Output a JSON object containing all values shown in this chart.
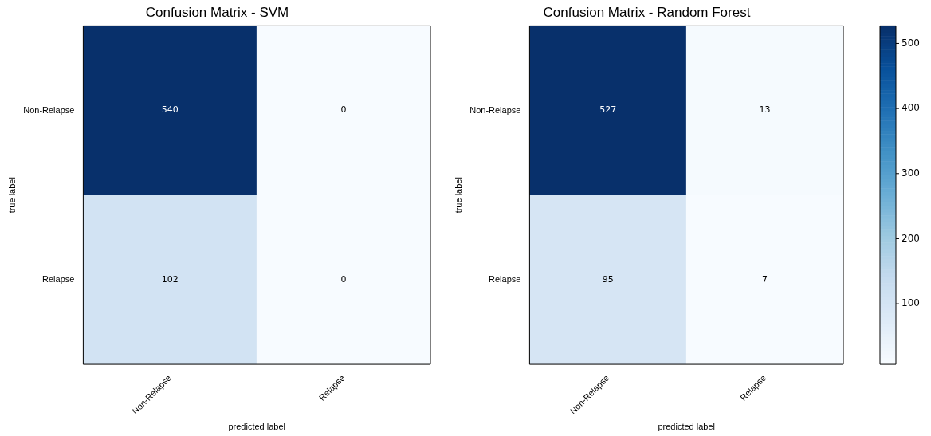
{
  "chart_data": [
    {
      "type": "heatmap",
      "title": "Confusion Matrix - SVM",
      "xlabel": "predicted label",
      "ylabel": "true label",
      "categories": [
        "Non-Relapse",
        "Relapse"
      ],
      "y_categories": [
        "Non-Relapse",
        "Relapse"
      ],
      "cells": [
        [
          540,
          0
        ],
        [
          102,
          0
        ]
      ],
      "data_labels": true
    },
    {
      "type": "heatmap",
      "title": "Confusion Matrix - Random Forest",
      "xlabel": "predicted label",
      "ylabel": "true label",
      "categories": [
        "Non-Relapse",
        "Relapse"
      ],
      "y_categories": [
        "Non-Relapse",
        "Relapse"
      ],
      "cells": [
        [
          527,
          13
        ],
        [
          95,
          7
        ]
      ],
      "data_labels": true,
      "clim": [
        7,
        527
      ],
      "cticks": [
        100,
        200,
        300,
        400,
        500
      ]
    }
  ]
}
